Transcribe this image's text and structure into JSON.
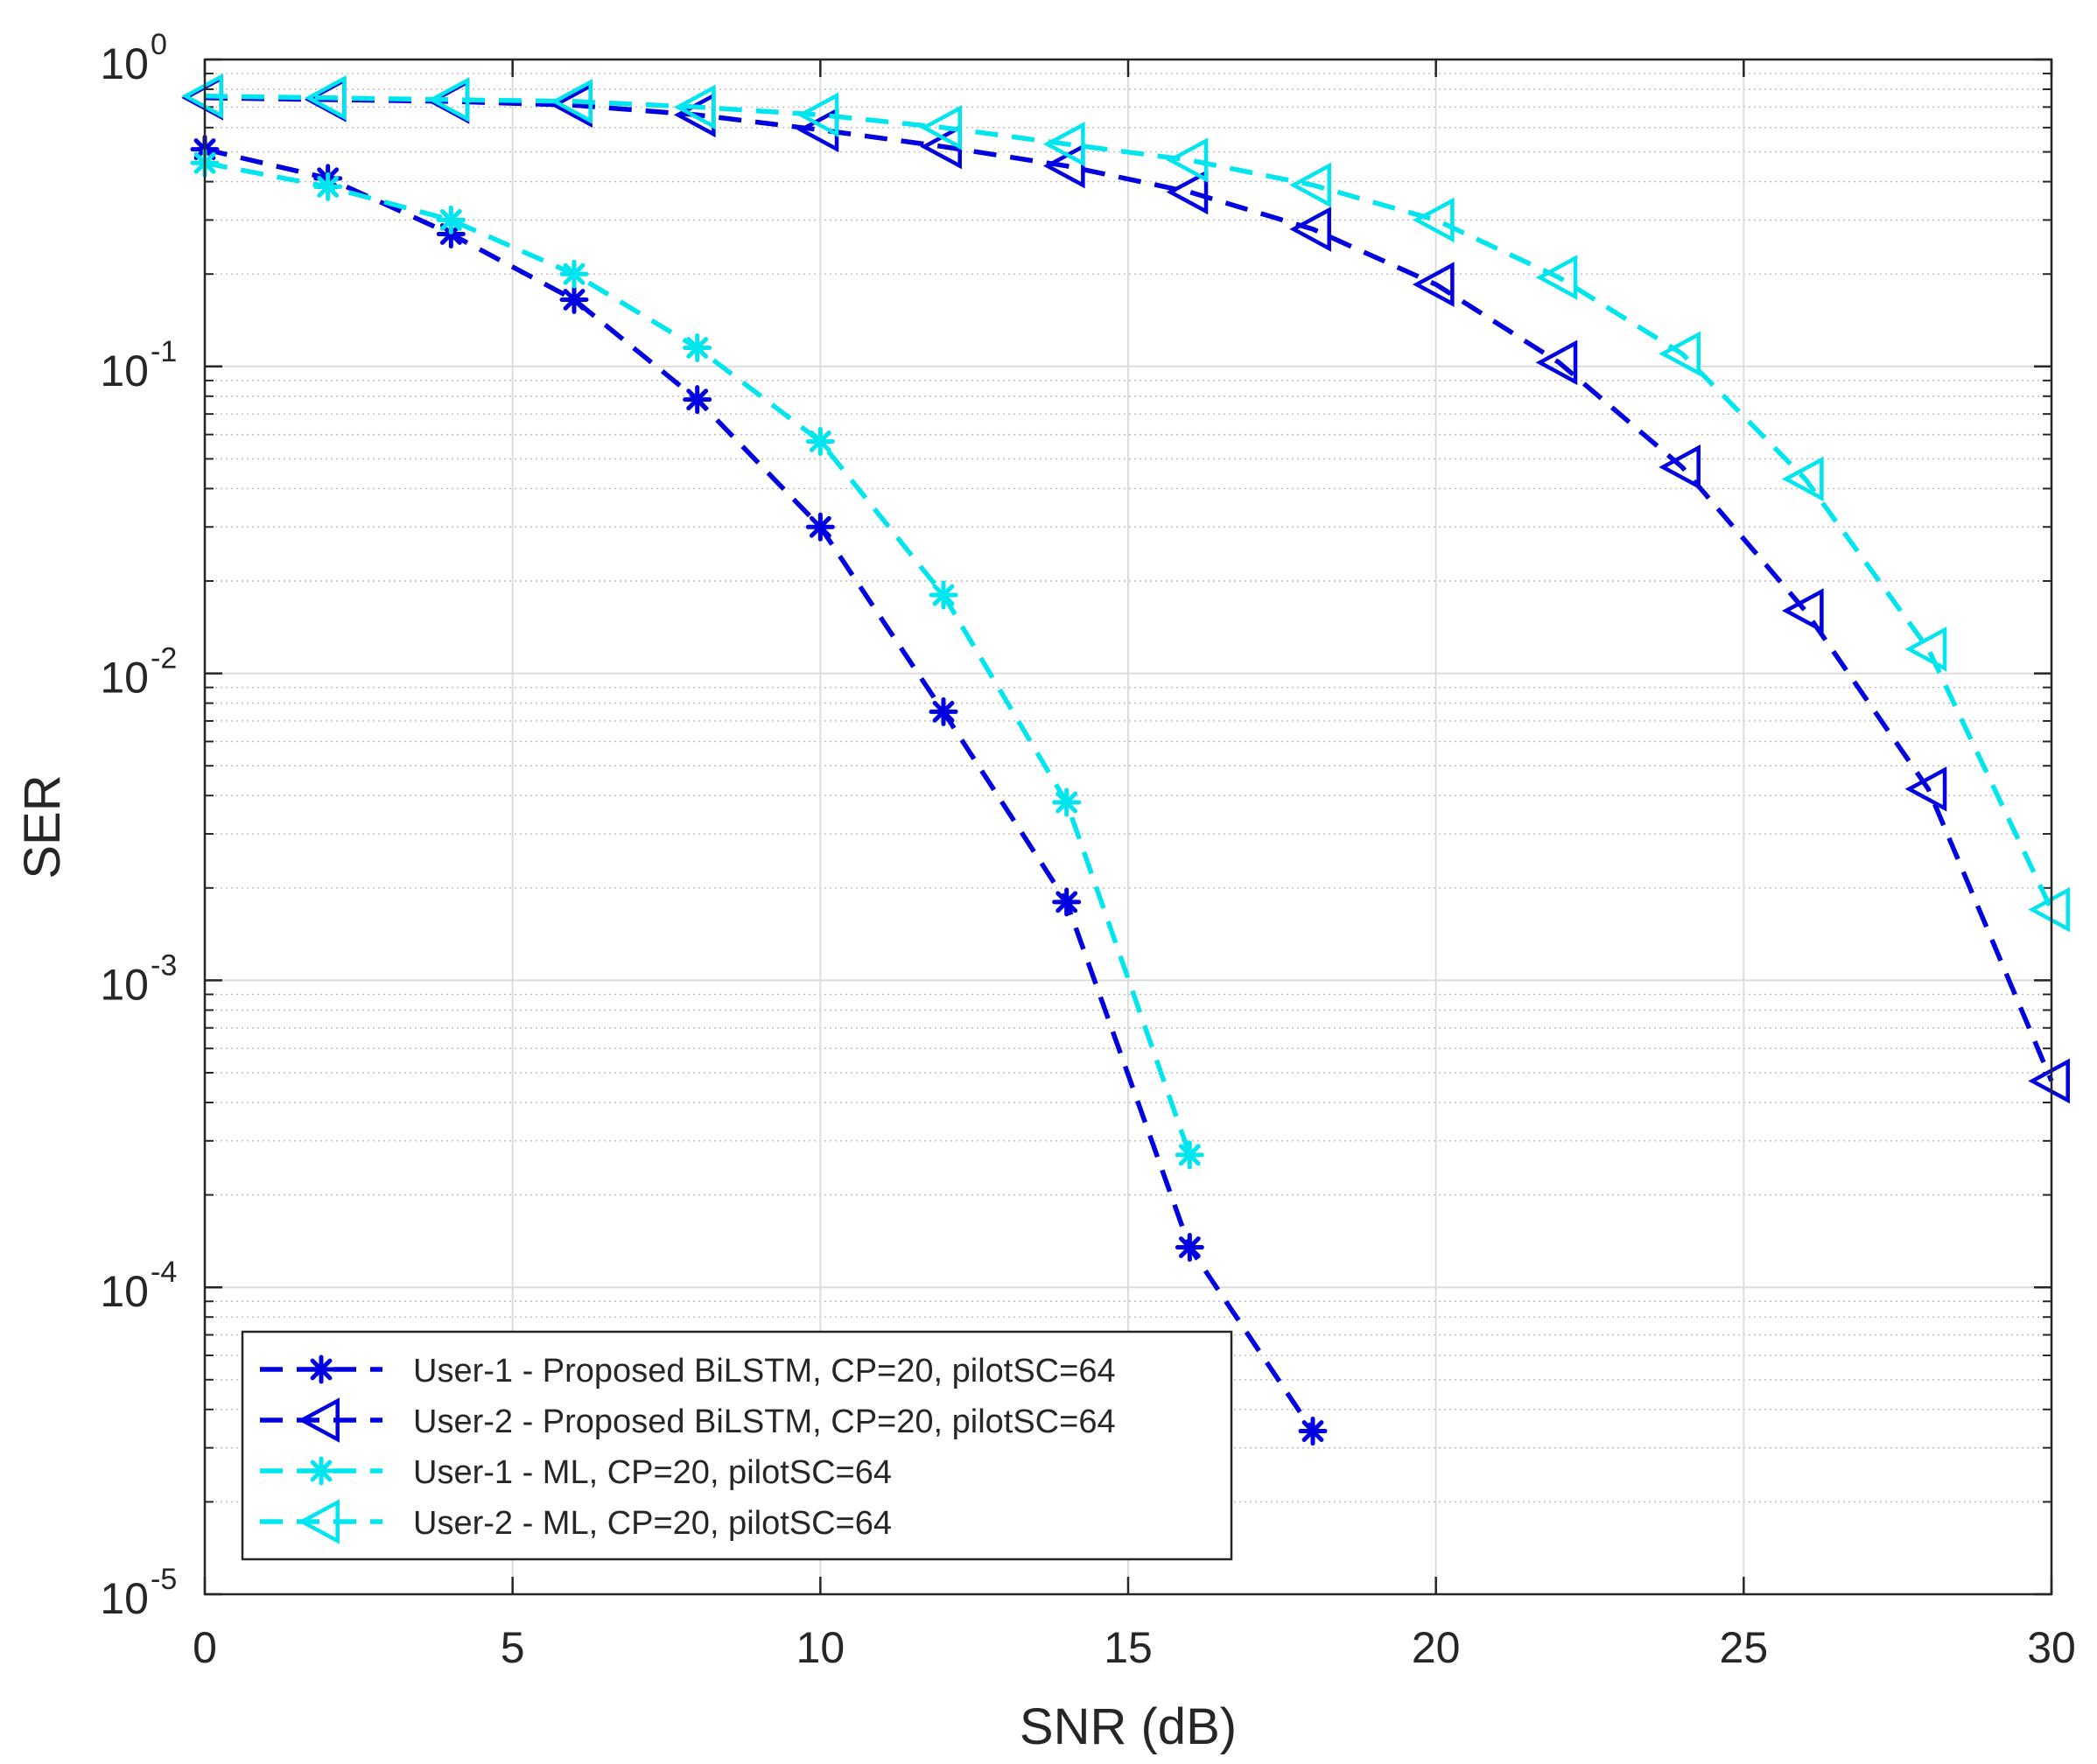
{
  "chart_data": {
    "type": "line",
    "xlabel": "SNR (dB)",
    "ylabel": "SER",
    "yscale": "log",
    "xlim": [
      0,
      30
    ],
    "ylim": [
      1e-05,
      1
    ],
    "grid": true,
    "minor_grid": true,
    "legend_location": "bottom-left",
    "x_ticks": [
      {
        "value": 0,
        "label": "0"
      },
      {
        "value": 5,
        "label": "5"
      },
      {
        "value": 10,
        "label": "10"
      },
      {
        "value": 15,
        "label": "15"
      },
      {
        "value": 20,
        "label": "20"
      },
      {
        "value": 25,
        "label": "25"
      },
      {
        "value": 30,
        "label": "30"
      }
    ],
    "y_ticks": [
      {
        "value": 1,
        "base": "10",
        "exp": "0"
      },
      {
        "value": 0.1,
        "base": "10",
        "exp": "-1"
      },
      {
        "value": 0.01,
        "base": "10",
        "exp": "-2"
      },
      {
        "value": 0.001,
        "base": "10",
        "exp": "-3"
      },
      {
        "value": 0.0001,
        "base": "10",
        "exp": "-4"
      },
      {
        "value": 1e-05,
        "base": "10",
        "exp": "-5"
      }
    ],
    "series": [
      {
        "name": "User-1 - Proposed BiLSTM, CP=20, pilotSC=64",
        "color": "#0000e0",
        "marker": "asterisk",
        "x": [
          0,
          2,
          4,
          6,
          8,
          10,
          12,
          14,
          16,
          18
        ],
        "y": [
          0.51,
          0.41,
          0.27,
          0.165,
          0.078,
          0.03,
          0.0075,
          0.0018,
          0.000135,
          3.4e-05
        ]
      },
      {
        "name": "User-2 - Proposed BiLSTM, CP=20, pilotSC=64",
        "color": "#0000e0",
        "marker": "triangle-left",
        "x": [
          0,
          2,
          4,
          6,
          8,
          10,
          12,
          14,
          16,
          18,
          20,
          22,
          24,
          26,
          28,
          30
        ],
        "y": [
          0.75,
          0.74,
          0.73,
          0.71,
          0.66,
          0.59,
          0.52,
          0.45,
          0.37,
          0.28,
          0.185,
          0.103,
          0.047,
          0.016,
          0.0042,
          0.00047
        ]
      },
      {
        "name": "User-1 - ML, CP=20, pilotSC=64",
        "color": "#00e5ee",
        "marker": "asterisk",
        "x": [
          0,
          2,
          4,
          6,
          8,
          10,
          12,
          14,
          16
        ],
        "y": [
          0.46,
          0.385,
          0.3,
          0.2,
          0.115,
          0.057,
          0.018,
          0.0038,
          0.00027
        ]
      },
      {
        "name": "User-2 - ML, CP=20, pilotSC=64",
        "color": "#00e5ee",
        "marker": "triangle-left",
        "x": [
          0,
          2,
          4,
          6,
          8,
          10,
          12,
          14,
          16,
          18,
          20,
          22,
          24,
          26,
          28,
          30
        ],
        "y": [
          0.76,
          0.75,
          0.74,
          0.73,
          0.7,
          0.66,
          0.6,
          0.53,
          0.47,
          0.39,
          0.3,
          0.195,
          0.11,
          0.043,
          0.012,
          0.0017
        ]
      }
    ]
  }
}
